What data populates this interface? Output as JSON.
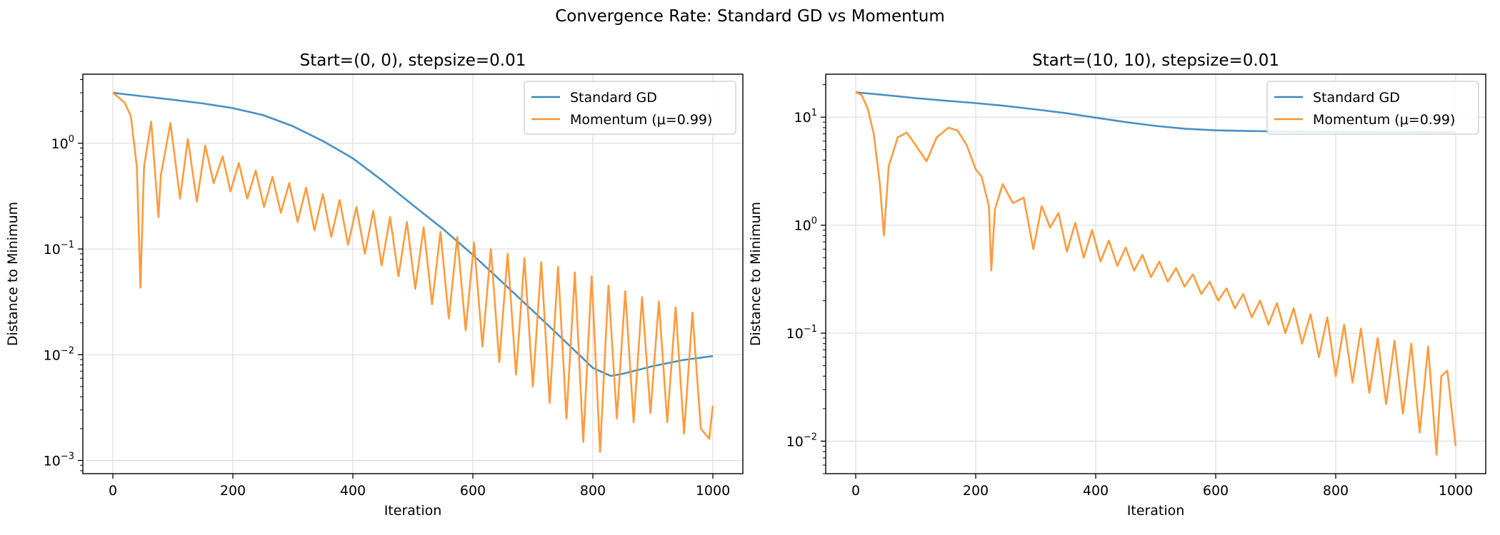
{
  "figure": {
    "suptitle": "Convergence Rate: Standard GD vs Momentum"
  },
  "colors": {
    "gd": "#3a87c0",
    "momentum": "#ff922c",
    "grid": "#e0e0e0"
  },
  "chart_data": [
    {
      "type": "line",
      "title": "Start=(0, 0), stepsize=0.01",
      "xlabel": "Iteration",
      "ylabel": "Distance to Minimum",
      "yscale": "log",
      "xlim": [
        -50,
        1050
      ],
      "ylim": [
        0.00075,
        4.5
      ],
      "xticks": [
        0,
        200,
        400,
        600,
        800,
        1000
      ],
      "xtick_labels": [
        "0",
        "200",
        "400",
        "600",
        "800",
        "1000"
      ],
      "yticks": [
        0.001,
        0.01,
        0.1,
        1
      ],
      "ytick_exponents": [
        "−3",
        "−2",
        "−1",
        "0"
      ],
      "grid": true,
      "legend": "top-right",
      "series": [
        {
          "name": "Standard GD",
          "x": [
            0,
            50,
            100,
            150,
            200,
            250,
            300,
            350,
            400,
            450,
            500,
            550,
            600,
            650,
            700,
            750,
            800,
            830,
            850,
            900,
            950,
            1000
          ],
          "y": [
            3.0,
            2.78,
            2.58,
            2.38,
            2.15,
            1.85,
            1.45,
            1.05,
            0.72,
            0.44,
            0.26,
            0.155,
            0.088,
            0.048,
            0.026,
            0.014,
            0.0075,
            0.0063,
            0.0066,
            0.0078,
            0.0089,
            0.0097
          ]
        },
        {
          "name": "Momentum (μ=0.99)",
          "x": [
            0,
            10,
            20,
            30,
            40,
            46,
            52,
            64,
            76,
            80,
            96,
            112,
            125,
            140,
            154,
            168,
            183,
            196,
            210,
            224,
            238,
            252,
            266,
            280,
            294,
            308,
            322,
            336,
            350,
            364,
            378,
            392,
            406,
            420,
            434,
            448,
            462,
            476,
            490,
            504,
            518,
            532,
            546,
            560,
            574,
            588,
            602,
            616,
            630,
            644,
            658,
            672,
            686,
            700,
            714,
            728,
            742,
            756,
            770,
            784,
            798,
            812,
            826,
            840,
            854,
            868,
            882,
            896,
            910,
            924,
            938,
            952,
            966,
            980,
            994,
            1000
          ],
          "y": [
            3.0,
            2.7,
            2.4,
            1.8,
            0.6,
            0.043,
            0.6,
            1.6,
            0.2,
            0.5,
            1.55,
            0.3,
            1.1,
            0.28,
            0.95,
            0.42,
            0.75,
            0.35,
            0.65,
            0.3,
            0.55,
            0.25,
            0.48,
            0.22,
            0.42,
            0.18,
            0.38,
            0.15,
            0.33,
            0.13,
            0.29,
            0.11,
            0.25,
            0.09,
            0.23,
            0.07,
            0.2,
            0.055,
            0.18,
            0.042,
            0.16,
            0.03,
            0.145,
            0.022,
            0.13,
            0.017,
            0.115,
            0.012,
            0.1,
            0.0085,
            0.09,
            0.0065,
            0.082,
            0.005,
            0.075,
            0.0035,
            0.068,
            0.0025,
            0.06,
            0.0015,
            0.055,
            0.0012,
            0.045,
            0.0025,
            0.04,
            0.0023,
            0.035,
            0.0028,
            0.032,
            0.0023,
            0.028,
            0.0018,
            0.025,
            0.002,
            0.0016,
            0.0033
          ]
        }
      ]
    },
    {
      "type": "line",
      "title": "Start=(10, 10), stepsize=0.01",
      "xlabel": "Iteration",
      "ylabel": "Distance to Minimum",
      "yscale": "log",
      "xlim": [
        -50,
        1050
      ],
      "ylim": [
        0.005,
        25
      ],
      "xticks": [
        0,
        200,
        400,
        600,
        800,
        1000
      ],
      "xtick_labels": [
        "0",
        "200",
        "400",
        "600",
        "800",
        "1000"
      ],
      "yticks": [
        0.01,
        0.1,
        1,
        10
      ],
      "ytick_exponents": [
        "−2",
        "−1",
        "0",
        "1"
      ],
      "grid": true,
      "legend": "top-right",
      "series": [
        {
          "name": "Standard GD",
          "x": [
            0,
            50,
            100,
            150,
            200,
            250,
            300,
            350,
            400,
            450,
            500,
            550,
            600,
            650,
            700,
            750,
            800,
            850,
            900,
            950,
            1000
          ],
          "y": [
            17.0,
            16.0,
            15.0,
            14.2,
            13.5,
            12.7,
            11.8,
            10.9,
            9.9,
            9.0,
            8.3,
            7.8,
            7.55,
            7.45,
            7.38,
            7.33,
            7.3,
            7.28,
            7.27,
            7.26,
            7.25
          ]
        },
        {
          "name": "Momentum (μ=0.99)",
          "x": [
            0,
            10,
            20,
            30,
            40,
            47,
            55,
            70,
            85,
            100,
            118,
            135,
            155,
            170,
            185,
            200,
            210,
            222,
            226,
            232,
            245,
            262,
            280,
            296,
            310,
            324,
            338,
            352,
            366,
            380,
            394,
            408,
            422,
            436,
            450,
            464,
            478,
            492,
            506,
            520,
            534,
            548,
            562,
            576,
            590,
            604,
            618,
            632,
            646,
            660,
            674,
            688,
            702,
            716,
            730,
            744,
            758,
            772,
            786,
            800,
            814,
            828,
            842,
            856,
            870,
            884,
            898,
            912,
            926,
            940,
            954,
            968,
            976,
            986,
            1000
          ],
          "y": [
            17.0,
            16.0,
            12.0,
            7.0,
            2.5,
            0.8,
            3.5,
            6.5,
            7.2,
            5.5,
            3.9,
            6.5,
            8.0,
            7.5,
            5.5,
            3.3,
            2.8,
            1.5,
            0.38,
            1.4,
            2.4,
            1.6,
            1.8,
            0.6,
            1.5,
            0.95,
            1.3,
            0.57,
            1.05,
            0.5,
            0.9,
            0.46,
            0.72,
            0.42,
            0.62,
            0.38,
            0.53,
            0.33,
            0.46,
            0.3,
            0.4,
            0.27,
            0.35,
            0.23,
            0.3,
            0.2,
            0.26,
            0.17,
            0.23,
            0.14,
            0.2,
            0.12,
            0.19,
            0.1,
            0.17,
            0.08,
            0.15,
            0.06,
            0.14,
            0.04,
            0.12,
            0.035,
            0.11,
            0.028,
            0.09,
            0.022,
            0.085,
            0.018,
            0.08,
            0.012,
            0.075,
            0.0075,
            0.04,
            0.045,
            0.009
          ]
        }
      ]
    }
  ]
}
